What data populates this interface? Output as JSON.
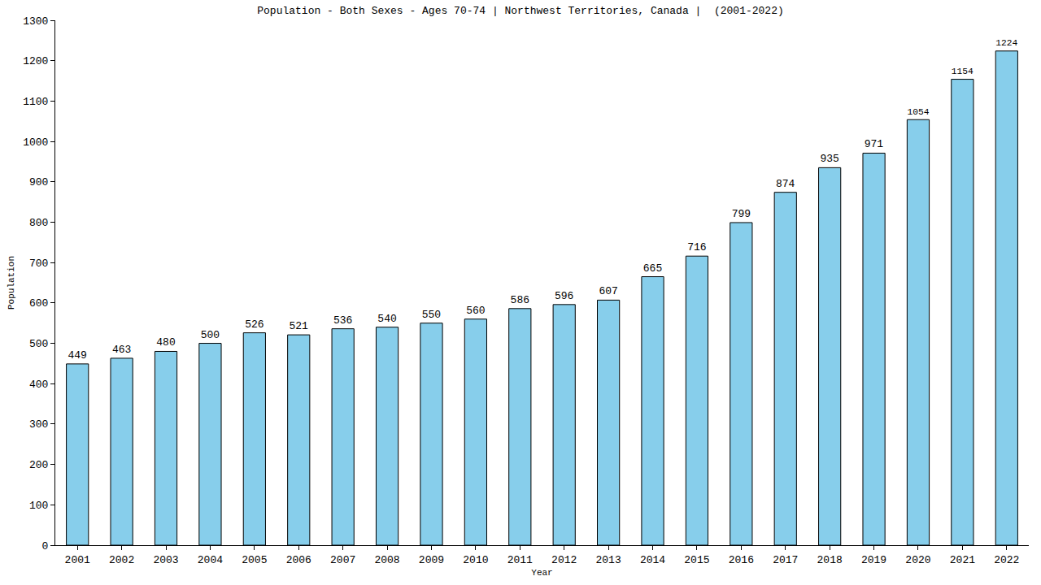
{
  "chart_data": {
    "type": "bar",
    "title": "Population - Both Sexes - Ages 70-74 | Northwest Territories, Canada |  (2001-2022)",
    "x_label": "Year",
    "y_label": "Population",
    "categories": [
      "2001",
      "2002",
      "2003",
      "2004",
      "2005",
      "2006",
      "2007",
      "2008",
      "2009",
      "2010",
      "2011",
      "2012",
      "2013",
      "2014",
      "2015",
      "2016",
      "2017",
      "2018",
      "2019",
      "2020",
      "2021",
      "2022"
    ],
    "values": [
      449,
      463,
      480,
      500,
      526,
      521,
      536,
      540,
      550,
      560,
      586,
      596,
      607,
      665,
      716,
      799,
      874,
      935,
      971,
      1054,
      1154,
      1224
    ],
    "color": "#87ceeb",
    "ylim": [
      0,
      1300
    ],
    "yticks": [
      0,
      100,
      200,
      300,
      400,
      500,
      600,
      700,
      800,
      900,
      1000,
      1100,
      1200,
      1300
    ],
    "grid": false,
    "data_labels": true
  }
}
